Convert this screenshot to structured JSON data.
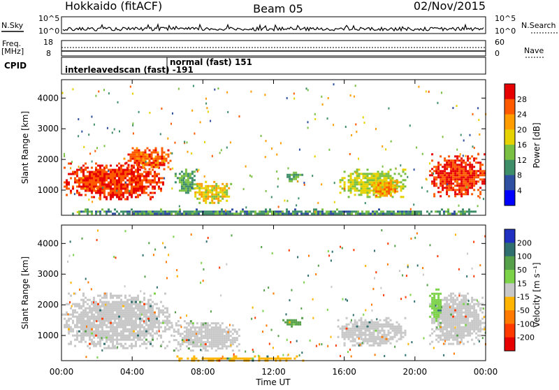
{
  "header": {
    "site": "Hokkaido (fitACF)",
    "beam": "Beam 05",
    "date": "02/Nov/2015"
  },
  "side_labels": {
    "nsky": "N.Sky",
    "nsearch": "N.Search",
    "freq": "Freq.",
    "freq_unit": "[MHz]",
    "nave": "Nave",
    "cpid": "CPID"
  },
  "noise_panel": {
    "left_ticks": [
      "10^5",
      "10^0"
    ],
    "right_ticks": [
      "10^5",
      "10^0"
    ]
  },
  "freq_panel": {
    "left_ticks": [
      "18",
      "8"
    ],
    "right_ticks": [
      "60",
      "0"
    ]
  },
  "cpid_panel": {
    "labels": [
      {
        "text": "interleavedscan (fast) -191",
        "hour": 0.2
      },
      {
        "text": "normal (fast) 151",
        "hour": 6.3
      }
    ]
  },
  "chart_data": [
    {
      "type": "heatmap",
      "panel": "power",
      "xlabel": "Time UT",
      "ylabel": "Slant Range [km]",
      "xlim_hours": [
        0,
        24
      ],
      "ylim_km": [
        180,
        4600
      ],
      "xticks": [
        "00:00",
        "04:00",
        "08:00",
        "12:00",
        "16:00",
        "20:00",
        "00:00"
      ],
      "yticks": [
        1000,
        2000,
        3000,
        4000
      ],
      "colorbar": {
        "label": "Power [dB]",
        "ticks": [
          "28",
          "24",
          "20",
          "16",
          "12",
          "8",
          "4"
        ],
        "colors": [
          "#e60000",
          "#ff5a00",
          "#ff9c00",
          "#e6d200",
          "#7ac043",
          "#3f8e6a",
          "#2f4fa0",
          "#0000ff"
        ]
      },
      "regions": [
        {
          "t0": 0.0,
          "t1": 5.8,
          "r0": 700,
          "r1": 1900,
          "value": 28
        },
        {
          "t0": 3.5,
          "t1": 6.2,
          "r0": 1700,
          "r1": 2400,
          "value": 26
        },
        {
          "t0": 6.4,
          "t1": 7.6,
          "r0": 900,
          "r1": 1700,
          "value": 12
        },
        {
          "t0": 7.4,
          "t1": 9.6,
          "r0": 600,
          "r1": 1300,
          "value": 18
        },
        {
          "t0": 12.5,
          "t1": 13.6,
          "r0": 1300,
          "r1": 1600,
          "value": 12
        },
        {
          "t0": 15.6,
          "t1": 19.5,
          "r0": 800,
          "r1": 1700,
          "value": 16
        },
        {
          "t0": 17.4,
          "t1": 19.0,
          "r0": 800,
          "r1": 1400,
          "value": 22
        },
        {
          "t0": 20.8,
          "t1": 24.0,
          "r0": 800,
          "r1": 2200,
          "value": 28
        },
        {
          "t0": 0.0,
          "t1": 24.0,
          "r0": 200,
          "r1": 400,
          "value": 10
        }
      ]
    },
    {
      "type": "heatmap",
      "panel": "velocity",
      "xlabel": "Time UT",
      "ylabel": "Slant Range [km]",
      "xlim_hours": [
        0,
        24
      ],
      "ylim_km": [
        180,
        4600
      ],
      "xticks": [
        "00:00",
        "04:00",
        "08:00",
        "12:00",
        "16:00",
        "20:00",
        "00:00"
      ],
      "yticks": [
        1000,
        2000,
        3000,
        4000
      ],
      "colorbar": {
        "label": "Velocity [m s⁻¹]",
        "ticks": [
          "200",
          "100",
          "50",
          "15",
          "-15",
          "-50",
          "-100",
          "-200"
        ],
        "colors": [
          "#2030c0",
          "#2f6f6f",
          "#56a04a",
          "#7cd34a",
          "#c8c8c8",
          "#ffb400",
          "#ff7a00",
          "#ff3a00",
          "#e60000"
        ]
      },
      "regions": [
        {
          "t0": 0.0,
          "t1": 6.2,
          "r0": 600,
          "r1": 2400,
          "value": 0
        },
        {
          "t0": 6.2,
          "t1": 10.0,
          "r0": 500,
          "r1": 1500,
          "value": 0
        },
        {
          "t0": 12.5,
          "t1": 13.6,
          "r0": 1300,
          "r1": 1600,
          "value": 60
        },
        {
          "t0": 15.6,
          "t1": 19.5,
          "r0": 700,
          "r1": 1600,
          "value": 0
        },
        {
          "t0": 20.8,
          "t1": 24.0,
          "r0": 700,
          "r1": 2400,
          "value": 0
        },
        {
          "t0": 20.8,
          "t1": 21.5,
          "r0": 1500,
          "r1": 2600,
          "value": 40
        },
        {
          "t0": 6.5,
          "t1": 14.0,
          "r0": 200,
          "r1": 350,
          "value": -40
        }
      ]
    }
  ]
}
